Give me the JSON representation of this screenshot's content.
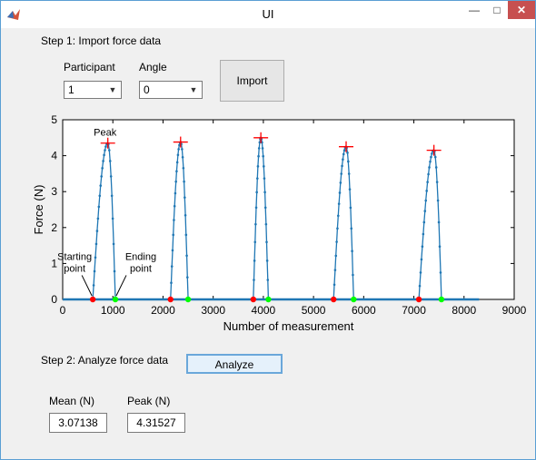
{
  "window": {
    "title": "UI",
    "minimize": "—",
    "maximize": "□",
    "close": "✕"
  },
  "step1": {
    "heading": "Step 1: Import force data",
    "participant_label": "Participant",
    "participant_value": "1",
    "angle_label": "Angle",
    "angle_value": "0",
    "import_label": "Import"
  },
  "chart_data": {
    "type": "line",
    "xlabel": "Number of measurement",
    "ylabel": "Force (N)",
    "xlim": [
      0,
      9000
    ],
    "ylim": [
      0,
      5
    ],
    "x_ticks": [
      "0",
      "1000",
      "2000",
      "3000",
      "4000",
      "5000",
      "6000",
      "7000",
      "8000",
      "9000"
    ],
    "y_ticks": [
      "0",
      "1",
      "2",
      "3",
      "4",
      "5"
    ],
    "grid": false,
    "baseline_extent": [
      0,
      8300
    ],
    "peaks": [
      {
        "start": 600,
        "end": 1050,
        "peak_x": 900,
        "peak_y": 4.35
      },
      {
        "start": 2150,
        "end": 2500,
        "peak_x": 2350,
        "peak_y": 4.38
      },
      {
        "start": 3800,
        "end": 4100,
        "peak_x": 3950,
        "peak_y": 4.5
      },
      {
        "start": 5400,
        "end": 5800,
        "peak_x": 5650,
        "peak_y": 4.25
      },
      {
        "start": 7100,
        "end": 7550,
        "peak_x": 7400,
        "peak_y": 4.15
      }
    ],
    "start_points_x": [
      600,
      2150,
      3800,
      5400,
      7100
    ],
    "end_points_x": [
      1050,
      2500,
      4100,
      5800,
      7550
    ],
    "annotations": {
      "peak": "Peak",
      "starting_line1": "Starting",
      "starting_line2": "point",
      "ending_line1": "Ending",
      "ending_line2": "point"
    },
    "colors": {
      "line": "#1f77b4",
      "start_marker": "#ff0000",
      "end_marker": "#00ff00",
      "peak_marker": "#ff0000"
    }
  },
  "step2": {
    "heading": "Step 2: Analyze force data",
    "analyze_label": "Analyze",
    "mean_label": "Mean (N)",
    "mean_value": "3.07138",
    "peak_label": "Peak (N)",
    "peak_value": "4.31527"
  }
}
